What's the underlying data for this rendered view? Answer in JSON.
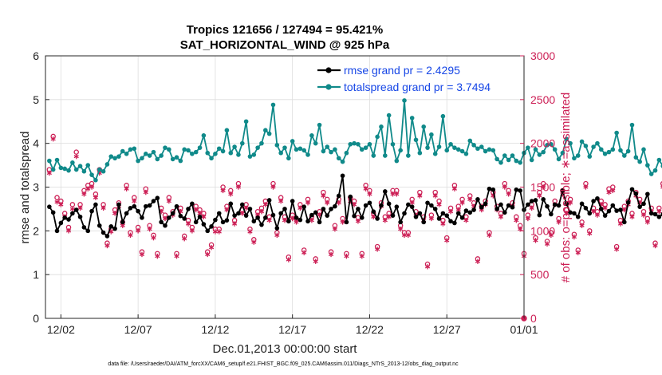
{
  "chart_data": {
    "type": "line",
    "title_line1": "Tropics 121656 / 127494 = 95.421%",
    "title_line2": "SAT_HORIZONTAL_WIND @ 925 hPa",
    "xlabel": "Dec.01,2013 00:00:00 start",
    "ylabel_left": "rmse and totalspread",
    "ylabel_right": "# of obs: o=possible; ∗=assimilated",
    "footnote": "data file: /Users/raeder/DAI/ATM_forcXX/CAM6_setup/f.e21.FHIST_BGC.f09_025.CAM6assim.011/Diags_NTrS_2013-12/obs_diag_output.nc",
    "xlim": [
      0,
      31
    ],
    "ylim_left": [
      0,
      6
    ],
    "ylim_right": [
      0,
      3000
    ],
    "x_ticks": [
      1,
      6,
      11,
      16,
      21,
      26,
      31
    ],
    "x_tick_labels": [
      "12/02",
      "12/07",
      "12/12",
      "12/17",
      "12/22",
      "12/27",
      "01/01"
    ],
    "y_ticks_left": [
      0,
      1,
      2,
      3,
      4,
      5,
      6
    ],
    "y_ticks_right": [
      0,
      500,
      1000,
      1500,
      2000,
      2500,
      3000
    ],
    "colors": {
      "rmse": "#000000",
      "spread": "#108a8a",
      "obs": "#cc1f55",
      "legend_text": "#1646e6",
      "grid": "#dddddd"
    },
    "legend": [
      {
        "label": "rmse grand pr = 2.4295",
        "series": "rmse"
      },
      {
        "label": "totalspread grand pr = 3.7494",
        "series": "spread"
      }
    ],
    "series": [
      {
        "name": "rmse",
        "x_start": 0.25,
        "x_step": 0.25,
        "values": [
          2.55,
          2.42,
          2.0,
          2.18,
          2.3,
          2.26,
          2.4,
          2.48,
          2.32,
          2.08,
          2.0,
          2.45,
          2.6,
          2.12,
          1.96,
          1.88,
          2.1,
          2.05,
          2.6,
          2.2,
          2.4,
          2.52,
          2.56,
          2.45,
          2.3,
          2.56,
          2.58,
          2.68,
          2.75,
          2.2,
          2.12,
          2.3,
          2.4,
          2.56,
          2.34,
          2.28,
          2.5,
          2.62,
          2.2,
          2.32,
          2.15,
          2.0,
          2.1,
          2.25,
          2.4,
          2.2,
          2.24,
          2.62,
          2.35,
          2.4,
          2.6,
          2.35,
          2.5,
          2.22,
          2.3,
          2.14,
          2.3,
          2.7,
          2.36,
          2.06,
          2.4,
          2.5,
          2.22,
          2.68,
          2.3,
          2.25,
          2.55,
          2.22,
          2.36,
          2.42,
          2.2,
          2.5,
          2.35,
          2.5,
          2.56,
          2.8,
          3.26,
          2.2,
          2.78,
          2.34,
          2.5,
          2.3,
          2.58,
          2.64,
          2.44,
          2.28,
          2.58,
          2.9,
          2.62,
          2.35,
          2.55,
          2.2,
          2.4,
          2.6,
          2.55,
          2.32,
          2.4,
          2.2,
          2.64,
          2.58,
          2.5,
          2.28,
          2.4,
          2.35,
          2.22,
          2.18,
          2.4,
          2.3,
          2.46,
          2.42,
          2.48,
          2.72,
          2.54,
          2.62,
          2.96,
          2.94,
          2.5,
          2.6,
          2.42,
          2.58,
          2.54,
          2.94,
          2.92,
          2.48,
          2.6,
          2.68,
          2.7,
          2.36,
          2.72,
          2.56,
          2.38,
          2.6,
          2.58,
          2.92,
          2.62,
          2.42,
          2.4,
          2.32,
          2.62,
          2.52,
          2.4,
          2.68,
          2.74,
          2.5,
          2.35,
          2.45,
          2.58,
          2.46,
          2.48,
          2.2,
          2.65,
          2.95,
          2.85,
          2.55,
          2.62,
          2.84,
          2.4,
          2.38,
          2.32,
          2.38
        ]
      },
      {
        "name": "totalspread",
        "x_start": 0.25,
        "x_step": 0.25,
        "values": [
          3.6,
          3.4,
          3.62,
          3.44,
          3.42,
          3.38,
          3.56,
          3.4,
          3.48,
          3.36,
          3.5,
          3.28,
          3.16,
          3.4,
          3.36,
          3.52,
          3.7,
          3.66,
          3.7,
          3.82,
          3.76,
          3.86,
          3.88,
          3.6,
          3.66,
          3.76,
          3.72,
          3.8,
          3.64,
          3.72,
          3.9,
          3.86,
          3.64,
          3.68,
          3.6,
          3.86,
          3.84,
          3.76,
          3.8,
          3.9,
          4.18,
          3.78,
          3.66,
          3.76,
          3.88,
          3.82,
          4.3,
          3.78,
          3.92,
          3.74,
          4.0,
          4.5,
          3.7,
          3.74,
          3.9,
          4.0,
          4.3,
          4.22,
          4.88,
          3.96,
          3.78,
          3.9,
          3.66,
          4.05,
          3.86,
          3.88,
          3.84,
          3.74,
          4.18,
          4.0,
          4.42,
          3.82,
          3.92,
          3.8,
          3.86,
          3.66,
          3.58,
          3.78,
          3.98,
          4.0,
          3.98,
          3.86,
          3.9,
          3.98,
          3.72,
          4.15,
          4.38,
          3.72,
          4.64,
          3.98,
          3.6,
          3.84,
          4.98,
          3.72,
          4.58,
          4.08,
          3.78,
          4.38,
          3.9,
          4.2,
          3.76,
          3.92,
          4.62,
          3.84,
          3.98,
          3.9,
          3.86,
          3.82,
          3.76,
          4.06,
          3.96,
          3.88,
          3.92,
          3.82,
          3.86,
          3.84,
          3.64,
          3.56,
          3.72,
          3.62,
          3.72,
          3.6,
          3.56,
          3.78,
          3.9,
          3.62,
          3.86,
          3.74,
          3.8,
          3.96,
          3.98,
          3.86,
          3.64,
          3.78,
          4.1,
          4.0,
          3.66,
          3.72,
          4.04,
          3.94,
          3.7,
          3.92,
          4.0,
          3.86,
          3.76,
          3.8,
          3.86,
          4.24,
          3.84,
          3.72,
          3.82,
          4.42,
          3.68,
          3.58,
          3.86,
          3.5,
          3.3,
          3.38,
          3.62,
          3.48,
          3.6,
          3.72,
          3.62,
          3.7
        ]
      },
      {
        "name": "possible",
        "x_start": 0.25,
        "x_step": 0.25,
        "values": [
          1700,
          2080,
          1380,
          1340,
          1200,
          1040,
          1300,
          1900,
          1300,
          1460,
          1520,
          1540,
          1420,
          1700,
          1300,
          860,
          1020,
          1240,
          1320,
          1100,
          1520,
          980,
          1380,
          1040,
          760,
          1480,
          1060,
          950,
          740,
          1260,
          1180,
          1380,
          1220,
          740,
          1260,
          940,
          1120,
          1040,
          1280,
          1240,
          1200,
          760,
          840,
          1020,
          1020,
          1500,
          1280,
          1460,
          1120,
          1540,
          1240,
          1300,
          1020,
          900,
          1220,
          1260,
          1340,
          1160,
          1540,
          980,
          1380,
          1160,
          700,
          1180,
          1140,
          1300,
          780,
          1360,
          1160,
          680,
          1220,
          1440,
          1360,
          760,
          1060,
          1360,
          1140,
          740,
          1380,
          1340,
          1150,
          740,
          1520,
          1460,
          1200,
          820,
          1320,
          1160,
          1200,
          1460,
          1460,
          1060,
          980,
          980,
          1360,
          1220,
          1440,
          1160,
          620,
          1180,
          1440,
          1340,
          1120,
          920,
          1260,
          1520,
          1280,
          1360,
          1160,
          1400,
          1320,
          680,
          1280,
          1340,
          980,
          1440,
          1280,
          1200,
          1540,
          1460,
          1320,
          1160,
          1060,
          740,
          1180,
          1300,
          920,
          1440,
          1540,
          880,
          980,
          1340,
          1140,
          1460,
          1240,
          1360,
          960,
          780,
          1100,
          1540,
          1000,
          1260,
          1220,
          1340,
          1300,
          1480,
          1500,
          820,
          1120,
          1280,
          1340,
          1200,
          1440,
          1360,
          1220,
          1140,
          1260,
          860,
          1260,
          1540,
          1080,
          1280,
          1000,
          1380,
          1220,
          1280,
          1180,
          1040
        ]
      },
      {
        "name": "assimilated",
        "x_start": 0.25,
        "x_step": 0.25,
        "values": [
          1660,
          2050,
          1330,
          1300,
          1160,
          1000,
          1250,
          1850,
          1260,
          1420,
          1480,
          1500,
          1380,
          1660,
          1260,
          830,
          990,
          1200,
          1280,
          1060,
          1480,
          950,
          1340,
          1000,
          730,
          1440,
          1020,
          920,
          710,
          1220,
          1140,
          1340,
          1180,
          710,
          1220,
          910,
          1080,
          1000,
          1240,
          1200,
          1160,
          730,
          810,
          990,
          990,
          1460,
          1240,
          1420,
          1080,
          1500,
          1200,
          1260,
          990,
          870,
          1180,
          1220,
          1300,
          1120,
          1500,
          950,
          1340,
          1120,
          670,
          1140,
          1100,
          1260,
          750,
          1320,
          1120,
          650,
          1180,
          1400,
          1320,
          730,
          1020,
          1320,
          1100,
          710,
          1340,
          1300,
          1110,
          710,
          1480,
          1420,
          1160,
          790,
          1280,
          1120,
          1160,
          1420,
          1420,
          1020,
          950,
          950,
          1320,
          1180,
          1400,
          1120,
          590,
          1140,
          1400,
          1300,
          1080,
          890,
          1220,
          1480,
          1240,
          1320,
          1120,
          1360,
          1280,
          650,
          1240,
          1300,
          950,
          1400,
          1240,
          1160,
          1500,
          1420,
          1280,
          1120,
          1020,
          710,
          1140,
          1260,
          890,
          1400,
          1500,
          850,
          950,
          1300,
          1100,
          1420,
          1200,
          1320,
          930,
          750,
          1060,
          1500,
          970,
          1220,
          1180,
          1300,
          1260,
          1440,
          1460,
          790,
          1080,
          1240,
          1300,
          1160,
          1400,
          1320,
          1180,
          1100,
          1220,
          830,
          1220,
          1500,
          1040,
          1240,
          970,
          1340,
          1180,
          1240,
          1140,
          1000
        ]
      }
    ]
  }
}
